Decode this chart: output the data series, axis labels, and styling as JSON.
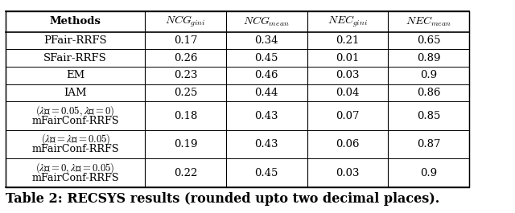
{
  "caption": "Table 2: RECSYS results (rounded upto two decimal places).",
  "caption_bold": true,
  "col_headers": [
    "Methods",
    "NCG_gini",
    "NCG_mean",
    "NEC_gini",
    "NEC_mean"
  ],
  "col_headers_italic": [
    false,
    true,
    true,
    true,
    true
  ],
  "col_headers_subscript": [
    "",
    "gini",
    "mean",
    "gini",
    "mean"
  ],
  "col_headers_base": [
    "Methods",
    "NCG",
    "NCG",
    "NEC",
    "NEC"
  ],
  "rows": [
    [
      "PFair-RRFS",
      "0.17",
      "0.34",
      "0.21",
      "0.65"
    ],
    [
      "SFair-RRFS",
      "0.26",
      "0.45",
      "0.01",
      "0.89"
    ],
    [
      "EM",
      "0.23",
      "0.46",
      "0.03",
      "0.9"
    ],
    [
      "IAM",
      "0.25",
      "0.44",
      "0.04",
      "0.86"
    ],
    [
      "mFairConf-RRFS\n(λ₁ = 0.05, λ₂ = 0)",
      "0.18",
      "0.43",
      "0.07",
      "0.85"
    ],
    [
      "mFairConf-RRFS\n(λ₁ = λ₂ = 0.05)",
      "0.19",
      "0.43",
      "0.06",
      "0.87"
    ],
    [
      "mFairConf-RRFS\n(λ₁ = 0, λ₂ = 0.05)",
      "0.22",
      "0.45",
      "0.03",
      "0.9"
    ]
  ],
  "background_color": "#ffffff",
  "header_bg": "#ffffff",
  "line_color": "#000000",
  "text_color": "#000000",
  "font_size": 9.5,
  "caption_font_size": 11.5
}
